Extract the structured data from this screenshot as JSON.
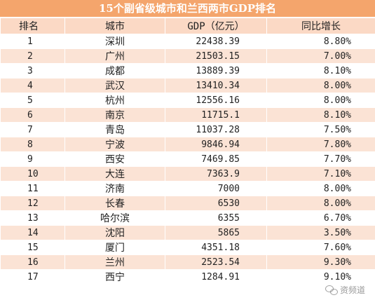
{
  "title": "15个副省级城市和兰西两市GDP排名",
  "columns": {
    "rank": "排名",
    "city": "城市",
    "gdp": "GDP（亿元）",
    "growth": "同比增长"
  },
  "rows": [
    {
      "rank": "1",
      "city": "深圳",
      "gdp": "22438.39",
      "growth": "8.80%"
    },
    {
      "rank": "2",
      "city": "广州",
      "gdp": "21503.15",
      "growth": "7.00%"
    },
    {
      "rank": "3",
      "city": "成都",
      "gdp": "13889.39",
      "growth": "8.10%"
    },
    {
      "rank": "4",
      "city": "武汉",
      "gdp": "13410.34",
      "growth": "8.00%"
    },
    {
      "rank": "5",
      "city": "杭州",
      "gdp": "12556.16",
      "growth": "8.00%"
    },
    {
      "rank": "6",
      "city": "南京",
      "gdp": "11715.1",
      "growth": "8.10%"
    },
    {
      "rank": "7",
      "city": "青岛",
      "gdp": "11037.28",
      "growth": "7.50%"
    },
    {
      "rank": "8",
      "city": "宁波",
      "gdp": "9846.94",
      "growth": "7.80%"
    },
    {
      "rank": "9",
      "city": "西安",
      "gdp": "7469.85",
      "growth": "7.70%"
    },
    {
      "rank": "10",
      "city": "大连",
      "gdp": "7363.9",
      "growth": "7.10%"
    },
    {
      "rank": "11",
      "city": "济南",
      "gdp": "7000",
      "growth": "8.00%"
    },
    {
      "rank": "12",
      "city": "长春",
      "gdp": "6530",
      "growth": "8.00%"
    },
    {
      "rank": "13",
      "city": "哈尔滨",
      "gdp": "6355",
      "growth": "6.70%"
    },
    {
      "rank": "14",
      "city": "沈阳",
      "gdp": "5865",
      "growth": "3.50%"
    },
    {
      "rank": "15",
      "city": "厦门",
      "gdp": "4351.18",
      "growth": "7.60%"
    },
    {
      "rank": "16",
      "city": "兰州",
      "gdp": "2523.54",
      "growth": "9.30%"
    },
    {
      "rank": "17",
      "city": "西宁",
      "gdp": "1284.91",
      "growth": "9.10%"
    }
  ],
  "watermark": {
    "text": "资频道",
    "icon": "wechat-icon"
  }
}
